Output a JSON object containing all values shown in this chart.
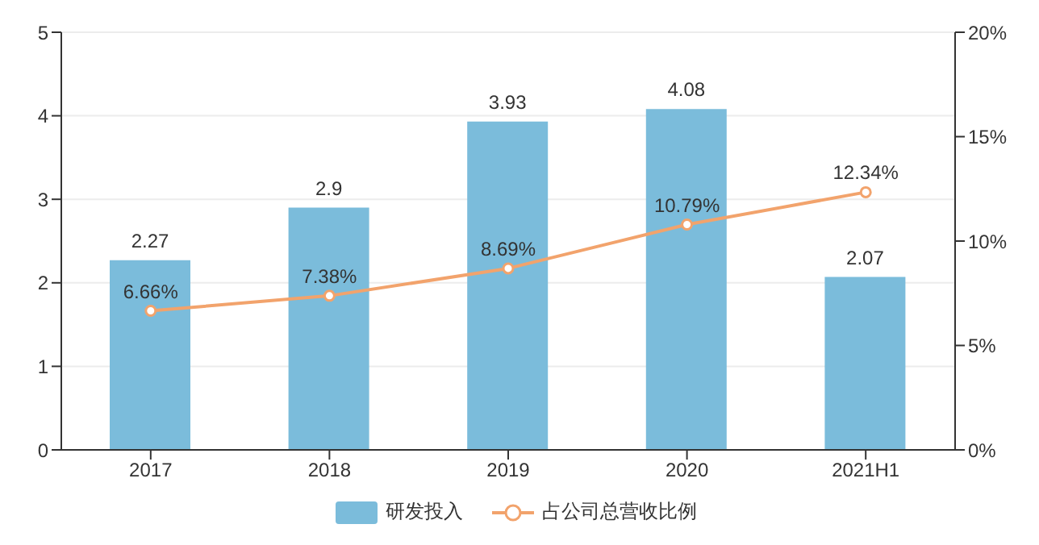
{
  "chart_data": {
    "type": "bar",
    "categories": [
      "2017",
      "2018",
      "2019",
      "2020",
      "2021H1"
    ],
    "series": [
      {
        "name": "研发投入",
        "color": "#7bbcdb",
        "values": [
          2.27,
          2.9,
          3.93,
          4.08,
          2.07
        ],
        "value_labels": [
          "2.27",
          "2.9",
          "3.93",
          "4.08",
          "2.07"
        ]
      },
      {
        "name": "占公司总营收比例",
        "type": "line",
        "axis": "y2",
        "color": "#f2a36c",
        "values": [
          6.66,
          7.38,
          8.69,
          10.79,
          12.34
        ],
        "value_labels": [
          "6.66%",
          "7.38%",
          "8.69%",
          "10.79%",
          "12.34%"
        ]
      }
    ],
    "ylim": [
      0,
      5
    ],
    "yticks": [
      0,
      1,
      2,
      3,
      4,
      5
    ],
    "y2lim": [
      0,
      20
    ],
    "y2ticks": [
      {
        "value": 0,
        "label": "0%"
      },
      {
        "value": 5,
        "label": "5%"
      },
      {
        "value": 10,
        "label": "10%"
      },
      {
        "value": 15,
        "label": "15%"
      },
      {
        "value": 20,
        "label": "20%"
      }
    ],
    "grid": "y",
    "legend": "bottom",
    "marker": "circle"
  }
}
